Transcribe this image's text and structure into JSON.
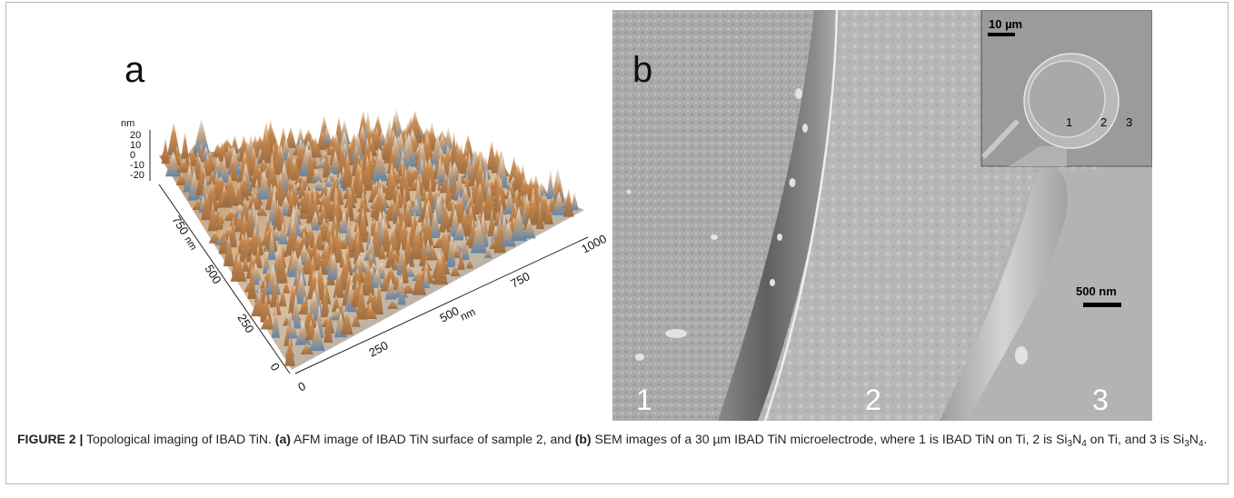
{
  "panel_a": {
    "letter": "a",
    "z_unit": "nm",
    "z_ticks": [
      "20",
      "10",
      "0",
      "-10",
      "-20"
    ],
    "y_ticks": [
      "750",
      "500",
      "250",
      "0"
    ],
    "x_ticks": [
      "0",
      "250",
      "500",
      "750",
      "1000"
    ],
    "x_unit": "nm",
    "y_unit": "nm",
    "surface_colors": {
      "peak": "#c6884f",
      "mid": "#e3c8a4",
      "valley": "#4d7aa8"
    }
  },
  "panel_b": {
    "letter": "b",
    "region_labels": [
      "1",
      "2",
      "3"
    ],
    "scale_bar": "500 nm",
    "inset": {
      "scale_bar": "10 µm",
      "labels": [
        "1",
        "2",
        "3"
      ]
    }
  },
  "caption": {
    "label": "FIGURE 2 |",
    "t1": "Topological imaging of IBAD TiN.",
    "a_mark": "(a)",
    "t2": "AFM image of IBAD TiN surface of sample 2, and",
    "b_mark": "(b)",
    "t3": "SEM images of a 30 µm IBAD TiN microelectrode, where 1 is IBAD TiN on Ti, 2 is Si",
    "sub1": "3",
    "t4": "N",
    "sub2": "4",
    "t5": "on Ti, and 3 is Si",
    "sub3": "3",
    "t6": "N",
    "sub4": "4",
    "t7": "."
  }
}
